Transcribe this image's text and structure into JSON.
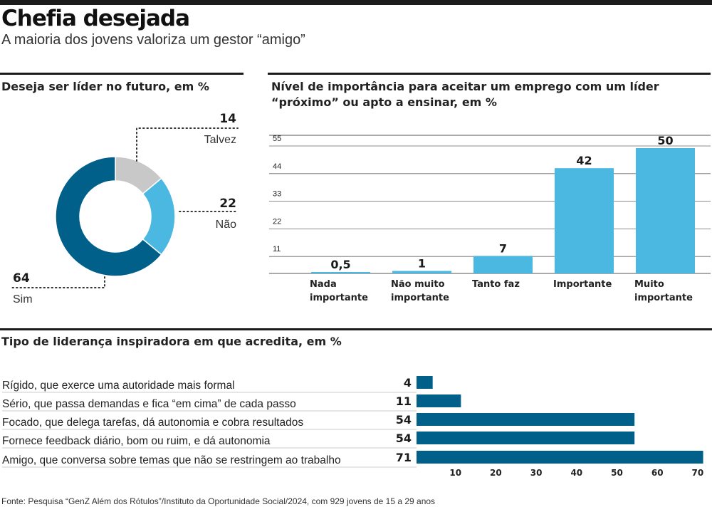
{
  "header": {
    "title": "Chefia desejada",
    "subtitle": "A maioria dos jovens valoriza um gestor “amigo”"
  },
  "colors": {
    "dark_blue": "#006089",
    "light_blue": "#4bb8e2",
    "gray": "#c8c8c8",
    "bar_blue": "#4bb8e2",
    "hbar_blue": "#006089"
  },
  "chart_data": [
    {
      "type": "pie",
      "title": "Deseja ser líder no futuro, em %",
      "slices": [
        {
          "label": "Talvez",
          "value": 14,
          "value_label": "14"
        },
        {
          "label": "Não",
          "value": 22,
          "value_label": "22"
        },
        {
          "label": "Sim",
          "value": 64,
          "value_label": "64"
        }
      ]
    },
    {
      "type": "bar",
      "title": "Nível de importância para aceitar um emprego com um líder “próximo” ou apto a ensinar, em %",
      "categories": [
        [
          "Nada",
          "importante"
        ],
        [
          "Não muito",
          "importante"
        ],
        [
          "Tanto faz"
        ],
        [
          "Importante"
        ],
        [
          "Muito",
          "importante"
        ]
      ],
      "values": [
        0.5,
        1,
        7,
        42,
        50
      ],
      "value_labels": [
        "0,5",
        "1",
        "7",
        "42",
        "50"
      ],
      "yticks": [
        11,
        22,
        33,
        44,
        55
      ],
      "ylim": [
        0,
        55
      ],
      "grid": true
    },
    {
      "type": "bar",
      "orientation": "horizontal",
      "title": "Tipo de liderança inspiradora em que acredita, em %",
      "categories": [
        "Rígido, que exerce uma autoridade mais formal",
        "Sério, que passa demandas e fica “em cima” de cada passo",
        "Focado, que delega tarefas, dá autonomia e cobra resultados",
        "Fornece feedback diário, bom ou ruim, e dá autonomia",
        "Amigo, que conversa sobre temas que não se restringem ao trabalho"
      ],
      "values": [
        4,
        11,
        54,
        54,
        71
      ],
      "xticks": [
        10,
        20,
        30,
        40,
        50,
        60,
        70
      ],
      "xlim": [
        0,
        71
      ]
    }
  ],
  "footer": {
    "source": "Fonte: Pesquisa “GenZ Além dos Rótulos”/Instituto da Oportunidade Social/2024, com 929 jovens de 15 a 29 anos"
  }
}
